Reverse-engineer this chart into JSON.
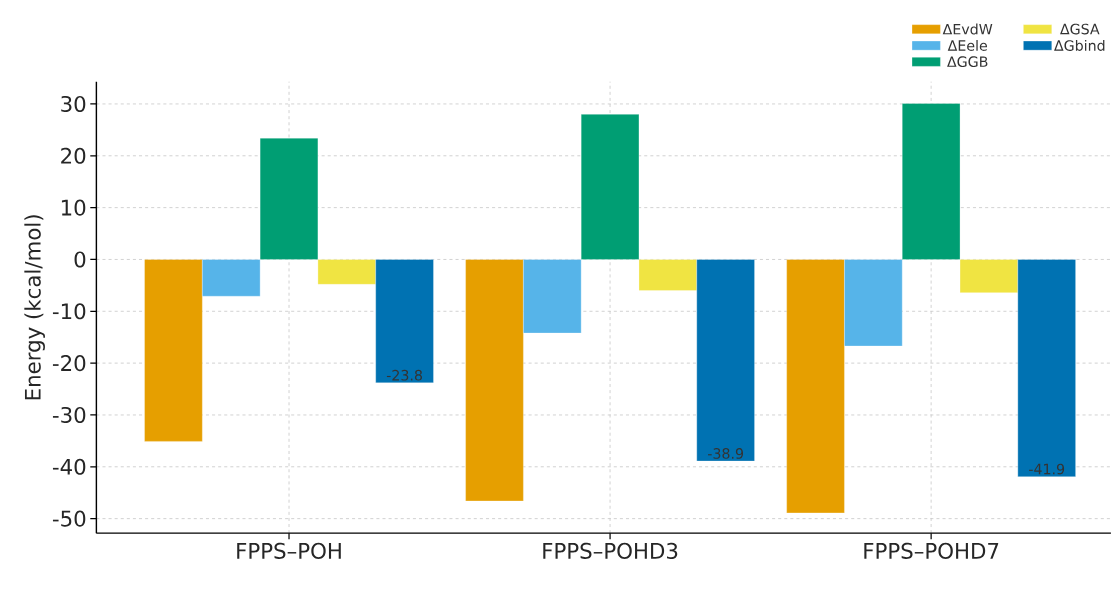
{
  "chart_data": {
    "type": "bar",
    "ylabel": "Energy (kcal/mol)",
    "categories": [
      "FPPS–POH",
      "FPPS–POHD3",
      "FPPS–POHD7"
    ],
    "series": [
      {
        "name": "ΔEvdW",
        "color": "#e69f00",
        "values": [
          -35.1,
          -46.6,
          -48.9
        ]
      },
      {
        "name": "ΔEele",
        "color": "#56b4e9",
        "values": [
          -7.1,
          -14.2,
          -16.7
        ]
      },
      {
        "name": "ΔGGB",
        "color": "#009e73",
        "values": [
          23.4,
          28.0,
          30.1
        ]
      },
      {
        "name": "ΔGSA",
        "color": "#f0e442",
        "values": [
          -4.8,
          -6.0,
          -6.4
        ]
      },
      {
        "name": "ΔGbind",
        "color": "#0072b2",
        "values": [
          -23.8,
          -38.9,
          -41.9
        ],
        "value_labels": [
          "-23.8",
          "-38.9",
          "-41.9"
        ]
      }
    ],
    "ylim": [
      -52.8,
      34.3
    ],
    "yticks": [
      -50,
      -40,
      -30,
      -20,
      -10,
      0,
      10,
      20,
      30
    ],
    "grid": true,
    "legend": "top right"
  }
}
